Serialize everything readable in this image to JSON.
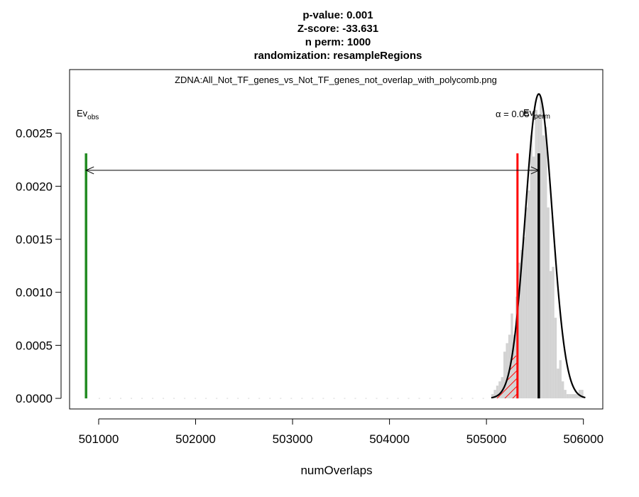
{
  "chart_data": {
    "type": "histogram",
    "title_lines": [
      "p-value:  0.001",
      "Z-score:  -33.631",
      "n perm:  1000",
      "randomization:  resampleRegions"
    ],
    "subtitle": "ZDNA:All_Not_TF_genes_vs_Not_TF_genes_not_overlap_with_polycomb.png",
    "xlabel": "numOverlaps",
    "ylabel": "",
    "xlim": [
      500700,
      506200
    ],
    "ylim": [
      -0.0001,
      0.0031
    ],
    "x_ticks": [
      501000,
      502000,
      503000,
      504000,
      505000,
      506000
    ],
    "y_ticks": [
      0.0,
      0.0005,
      0.001,
      0.0015,
      0.002,
      0.0025
    ],
    "y_tick_labels": [
      "0.0000",
      "0.0005",
      "0.0010",
      "0.0015",
      "0.0020",
      "0.0025"
    ],
    "observed": {
      "label": "Ev",
      "subscript": "obs",
      "value": 500870,
      "color": "#228B22"
    },
    "permuted_mean": {
      "label": "Ev",
      "subscript": "perm",
      "value": 505540,
      "color": "#000000"
    },
    "alpha": {
      "label": "α = 0.05",
      "value": 505320,
      "color": "#ff0000"
    },
    "vertical_line_top": 0.00231,
    "arrow_y": 0.00215,
    "normal_fit": {
      "mean": 505540,
      "sd": 139,
      "max_density": 0.00287,
      "x_range": [
        505050,
        506020
      ]
    },
    "histogram": {
      "bin_width": 25,
      "bins": [
        {
          "x0": 505050,
          "density": 4e-05
        },
        {
          "x0": 505075,
          "density": 8e-05
        },
        {
          "x0": 505100,
          "density": 0.00012
        },
        {
          "x0": 505125,
          "density": 0.00016
        },
        {
          "x0": 505150,
          "density": 0.0002
        },
        {
          "x0": 505175,
          "density": 0.00044
        },
        {
          "x0": 505200,
          "density": 0.00052
        },
        {
          "x0": 505225,
          "density": 0.0006
        },
        {
          "x0": 505250,
          "density": 0.0008
        },
        {
          "x0": 505275,
          "density": 0.0006
        },
        {
          "x0": 505300,
          "density": 0.00096
        },
        {
          "x0": 505325,
          "density": 0.00128
        },
        {
          "x0": 505350,
          "density": 0.0014
        },
        {
          "x0": 505375,
          "density": 0.00152
        },
        {
          "x0": 505400,
          "density": 0.0018
        },
        {
          "x0": 505425,
          "density": 0.00196
        },
        {
          "x0": 505450,
          "density": 0.00248
        },
        {
          "x0": 505475,
          "density": 0.00228
        },
        {
          "x0": 505500,
          "density": 0.00272
        },
        {
          "x0": 505525,
          "density": 0.00268
        },
        {
          "x0": 505550,
          "density": 0.00284
        },
        {
          "x0": 505575,
          "density": 0.00248
        },
        {
          "x0": 505600,
          "density": 0.00256
        },
        {
          "x0": 505625,
          "density": 0.0018
        },
        {
          "x0": 505650,
          "density": 0.0012
        },
        {
          "x0": 505675,
          "density": 0.00124
        },
        {
          "x0": 505700,
          "density": 0.00076
        },
        {
          "x0": 505725,
          "density": 0.00028
        },
        {
          "x0": 505750,
          "density": 0.00036
        },
        {
          "x0": 505775,
          "density": 0.00016
        },
        {
          "x0": 505800,
          "density": 8e-05
        },
        {
          "x0": 505825,
          "density": 4e-05
        },
        {
          "x0": 505850,
          "density": 4e-05
        },
        {
          "x0": 505875,
          "density": 4e-05
        },
        {
          "x0": 505900,
          "density": 4e-05
        },
        {
          "x0": 505925,
          "density": 4e-05
        },
        {
          "x0": 505950,
          "density": 8e-05
        },
        {
          "x0": 505975,
          "density": 8e-05
        }
      ],
      "color": "#d3d3d3"
    },
    "rug": {
      "from": 501000,
      "to": 505000,
      "step": 110,
      "color": "#d3d3d3"
    },
    "grid": false
  }
}
